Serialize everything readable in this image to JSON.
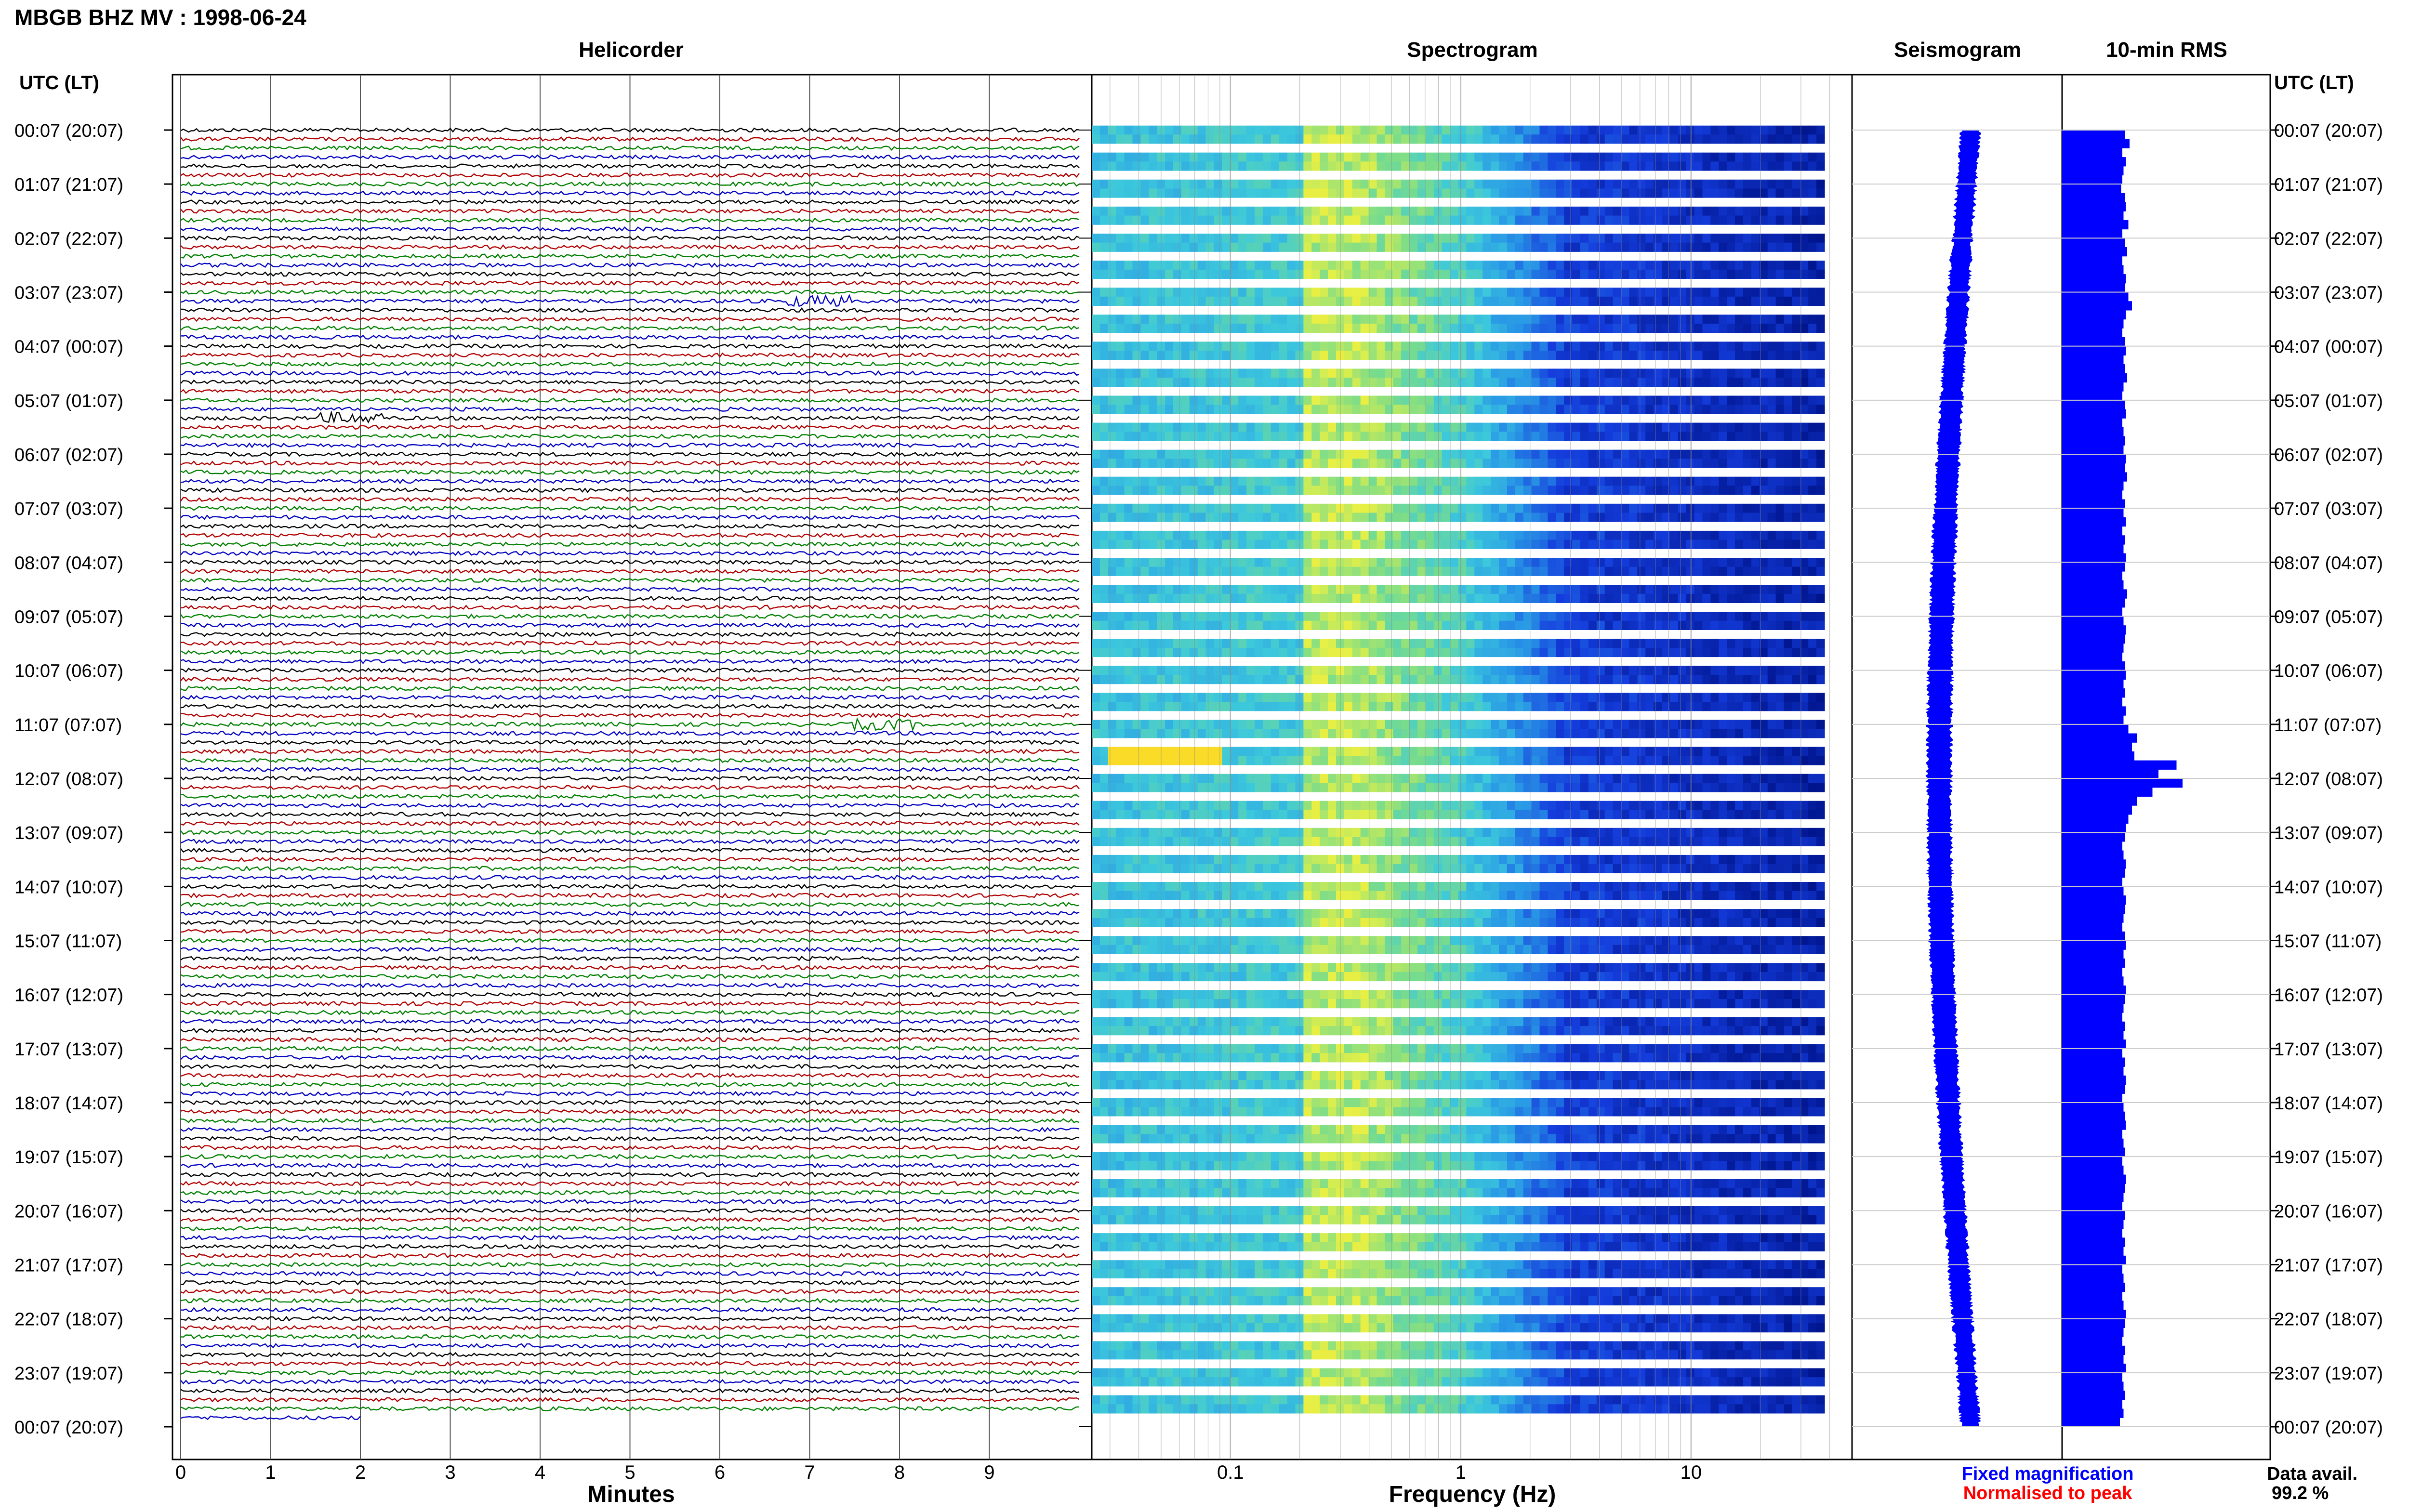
{
  "title": "MBGB BHZ MV : 1998-06-24",
  "panel_titles": {
    "helicorder": "Helicorder",
    "spectrogram": "Spectrogram",
    "seismogram": "Seismogram",
    "rms": "10-min RMS"
  },
  "axis_labels": {
    "utc_left": "UTC (LT)",
    "utc_right": "UTC (LT)",
    "minutes": "Minutes",
    "frequency": "Frequency (Hz)"
  },
  "legend": {
    "fixed": "Fixed magnification",
    "normalised": "Normalised to peak",
    "fixed_color": "#0000ff",
    "normalised_color": "#ff0000"
  },
  "data_avail": {
    "label": "Data avail.",
    "value": "99.2 %"
  },
  "colors": {
    "trace_cycle": [
      "#000000",
      "#b00000",
      "#008000",
      "#0000c0"
    ],
    "rms_bar": "#0000ff",
    "seismogram": "#0000ff",
    "spec_low": "#001a9a",
    "spec_mid": "#38c8e0",
    "spec_high": "#f0f040"
  },
  "chart_data": [
    {
      "type": "line",
      "panel": "helicorder",
      "title": "Helicorder",
      "xlabel": "Minutes",
      "x_ticks": [
        "0",
        "1",
        "2",
        "3",
        "4",
        "5",
        "6",
        "7",
        "8",
        "9"
      ],
      "xlim": [
        0,
        10
      ],
      "row_labels": [
        "00:07 (20:07)",
        "01:07 (21:07)",
        "02:07 (22:07)",
        "03:07 (23:07)",
        "04:07 (00:07)",
        "05:07 (01:07)",
        "06:07 (02:07)",
        "07:07 (03:07)",
        "08:07 (04:07)",
        "09:07 (05:07)",
        "10:07 (06:07)",
        "11:07 (07:07)",
        "12:07 (08:07)",
        "13:07 (09:07)",
        "14:07 (10:07)",
        "15:07 (11:07)",
        "16:07 (12:07)",
        "17:07 (13:07)",
        "18:07 (14:07)",
        "19:07 (15:07)",
        "20:07 (16:07)",
        "21:07 (17:07)",
        "22:07 (18:07)",
        "23:07 (19:07)",
        "00:07 (20:07)"
      ],
      "rows": 144,
      "row_minutes": 10,
      "events": [
        {
          "hour": 3.2,
          "minute": 7.1
        },
        {
          "hour": 11.0,
          "minute": 7.8
        },
        {
          "hour": 5.3,
          "minute": 1.9
        }
      ]
    },
    {
      "type": "heatmap",
      "panel": "spectrogram",
      "title": "Spectrogram",
      "xlabel": "Frequency (Hz)",
      "x_scale": "log",
      "xlim": [
        0.025,
        50
      ],
      "x_ticks": [
        0.1,
        1,
        10
      ],
      "notes": "energy concentrated 0.2-1 Hz; low energy above ~3 Hz"
    },
    {
      "type": "line",
      "panel": "seismogram",
      "title": "Seismogram",
      "grid": true
    },
    {
      "type": "bar",
      "panel": "rms",
      "title": "10-min RMS",
      "orientation": "horizontal",
      "values": [
        0.52,
        0.56,
        0.5,
        0.53,
        0.51,
        0.5,
        0.49,
        0.52,
        0.53,
        0.51,
        0.55,
        0.5,
        0.52,
        0.54,
        0.5,
        0.51,
        0.53,
        0.52,
        0.55,
        0.58,
        0.53,
        0.51,
        0.5,
        0.52,
        0.53,
        0.51,
        0.52,
        0.54,
        0.51,
        0.5,
        0.52,
        0.53,
        0.5,
        0.51,
        0.52,
        0.51,
        0.53,
        0.52,
        0.54,
        0.51,
        0.5,
        0.52,
        0.51,
        0.53,
        0.5,
        0.52,
        0.51,
        0.53,
        0.52,
        0.5,
        0.51,
        0.54,
        0.52,
        0.5,
        0.51,
        0.53,
        0.52,
        0.51,
        0.5,
        0.52,
        0.53,
        0.51,
        0.52,
        0.5,
        0.53,
        0.51,
        0.55,
        0.62,
        0.58,
        0.6,
        0.95,
        0.8,
        1.0,
        0.75,
        0.62,
        0.58,
        0.55,
        0.53,
        0.52,
        0.5,
        0.51,
        0.53,
        0.52,
        0.5,
        0.51,
        0.53,
        0.52,
        0.51,
        0.5,
        0.52,
        0.53,
        0.51,
        0.52,
        0.5,
        0.51,
        0.53,
        0.52,
        0.51,
        0.5,
        0.52,
        0.51,
        0.53,
        0.5,
        0.52,
        0.51,
        0.53,
        0.52,
        0.5,
        0.51,
        0.52,
        0.53,
        0.5,
        0.51,
        0.52,
        0.5,
        0.51,
        0.53,
        0.52,
        0.51,
        0.5,
        0.52,
        0.51,
        0.5,
        0.52,
        0.51,
        0.53,
        0.5,
        0.51,
        0.52,
        0.5,
        0.51,
        0.53,
        0.52,
        0.51,
        0.5,
        0.52,
        0.51,
        0.53,
        0.5,
        0.51,
        0.52,
        0.5,
        0.51,
        0.48
      ]
    }
  ]
}
